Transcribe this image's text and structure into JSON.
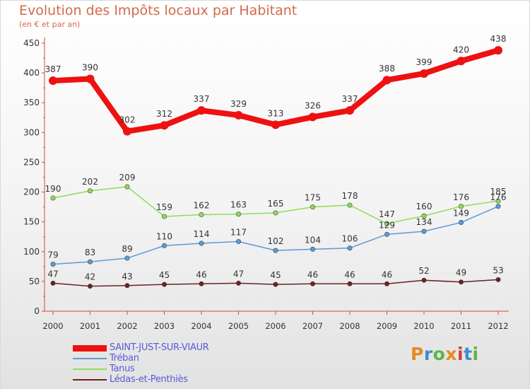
{
  "header": {
    "title": "Evolution des Impôts locaux par Habitant",
    "subtitle": "(en € et par an)"
  },
  "logo": {
    "text": "Proxiti",
    "colors": [
      "#e8891d",
      "#3a8fd0",
      "#5cb346",
      "#e8891d",
      "#d23c3c",
      "#3a8fd0",
      "#5cb346"
    ]
  },
  "chart_data": {
    "type": "line",
    "x": [
      "2000",
      "2001",
      "2002",
      "2003",
      "2004",
      "2005",
      "2006",
      "2007",
      "2008",
      "2009",
      "2010",
      "2011",
      "2012"
    ],
    "ylim": [
      0,
      450
    ],
    "yticks": [
      0,
      50,
      100,
      150,
      200,
      250,
      300,
      350,
      400,
      450
    ],
    "grid": false,
    "legend_position": "bottom-left",
    "series": [
      {
        "name": "SAINT-JUST-SUR-VIAUR",
        "color": "#ee1111",
        "line_width": 8,
        "marker_radius": 6,
        "values": [
          387,
          390,
          302,
          312,
          337,
          329,
          313,
          326,
          337,
          388,
          399,
          420,
          438
        ]
      },
      {
        "name": "Tréban",
        "color": "#5b9bd5",
        "line_width": 1.5,
        "marker_radius": 3.2,
        "values": [
          79,
          83,
          89,
          110,
          114,
          117,
          102,
          104,
          106,
          129,
          134,
          149,
          176
        ]
      },
      {
        "name": "Tanus",
        "color": "#8fdc57",
        "line_width": 1.5,
        "marker_radius": 3.2,
        "values": [
          190,
          202,
          209,
          159,
          162,
          163,
          165,
          175,
          178,
          147,
          160,
          176,
          185
        ]
      },
      {
        "name": "Lédas-et-Penthiès",
        "color": "#6e1f24",
        "line_width": 1.5,
        "marker_radius": 3.2,
        "values": [
          47,
          42,
          43,
          45,
          46,
          47,
          45,
          46,
          46,
          46,
          52,
          49,
          53
        ]
      }
    ]
  }
}
